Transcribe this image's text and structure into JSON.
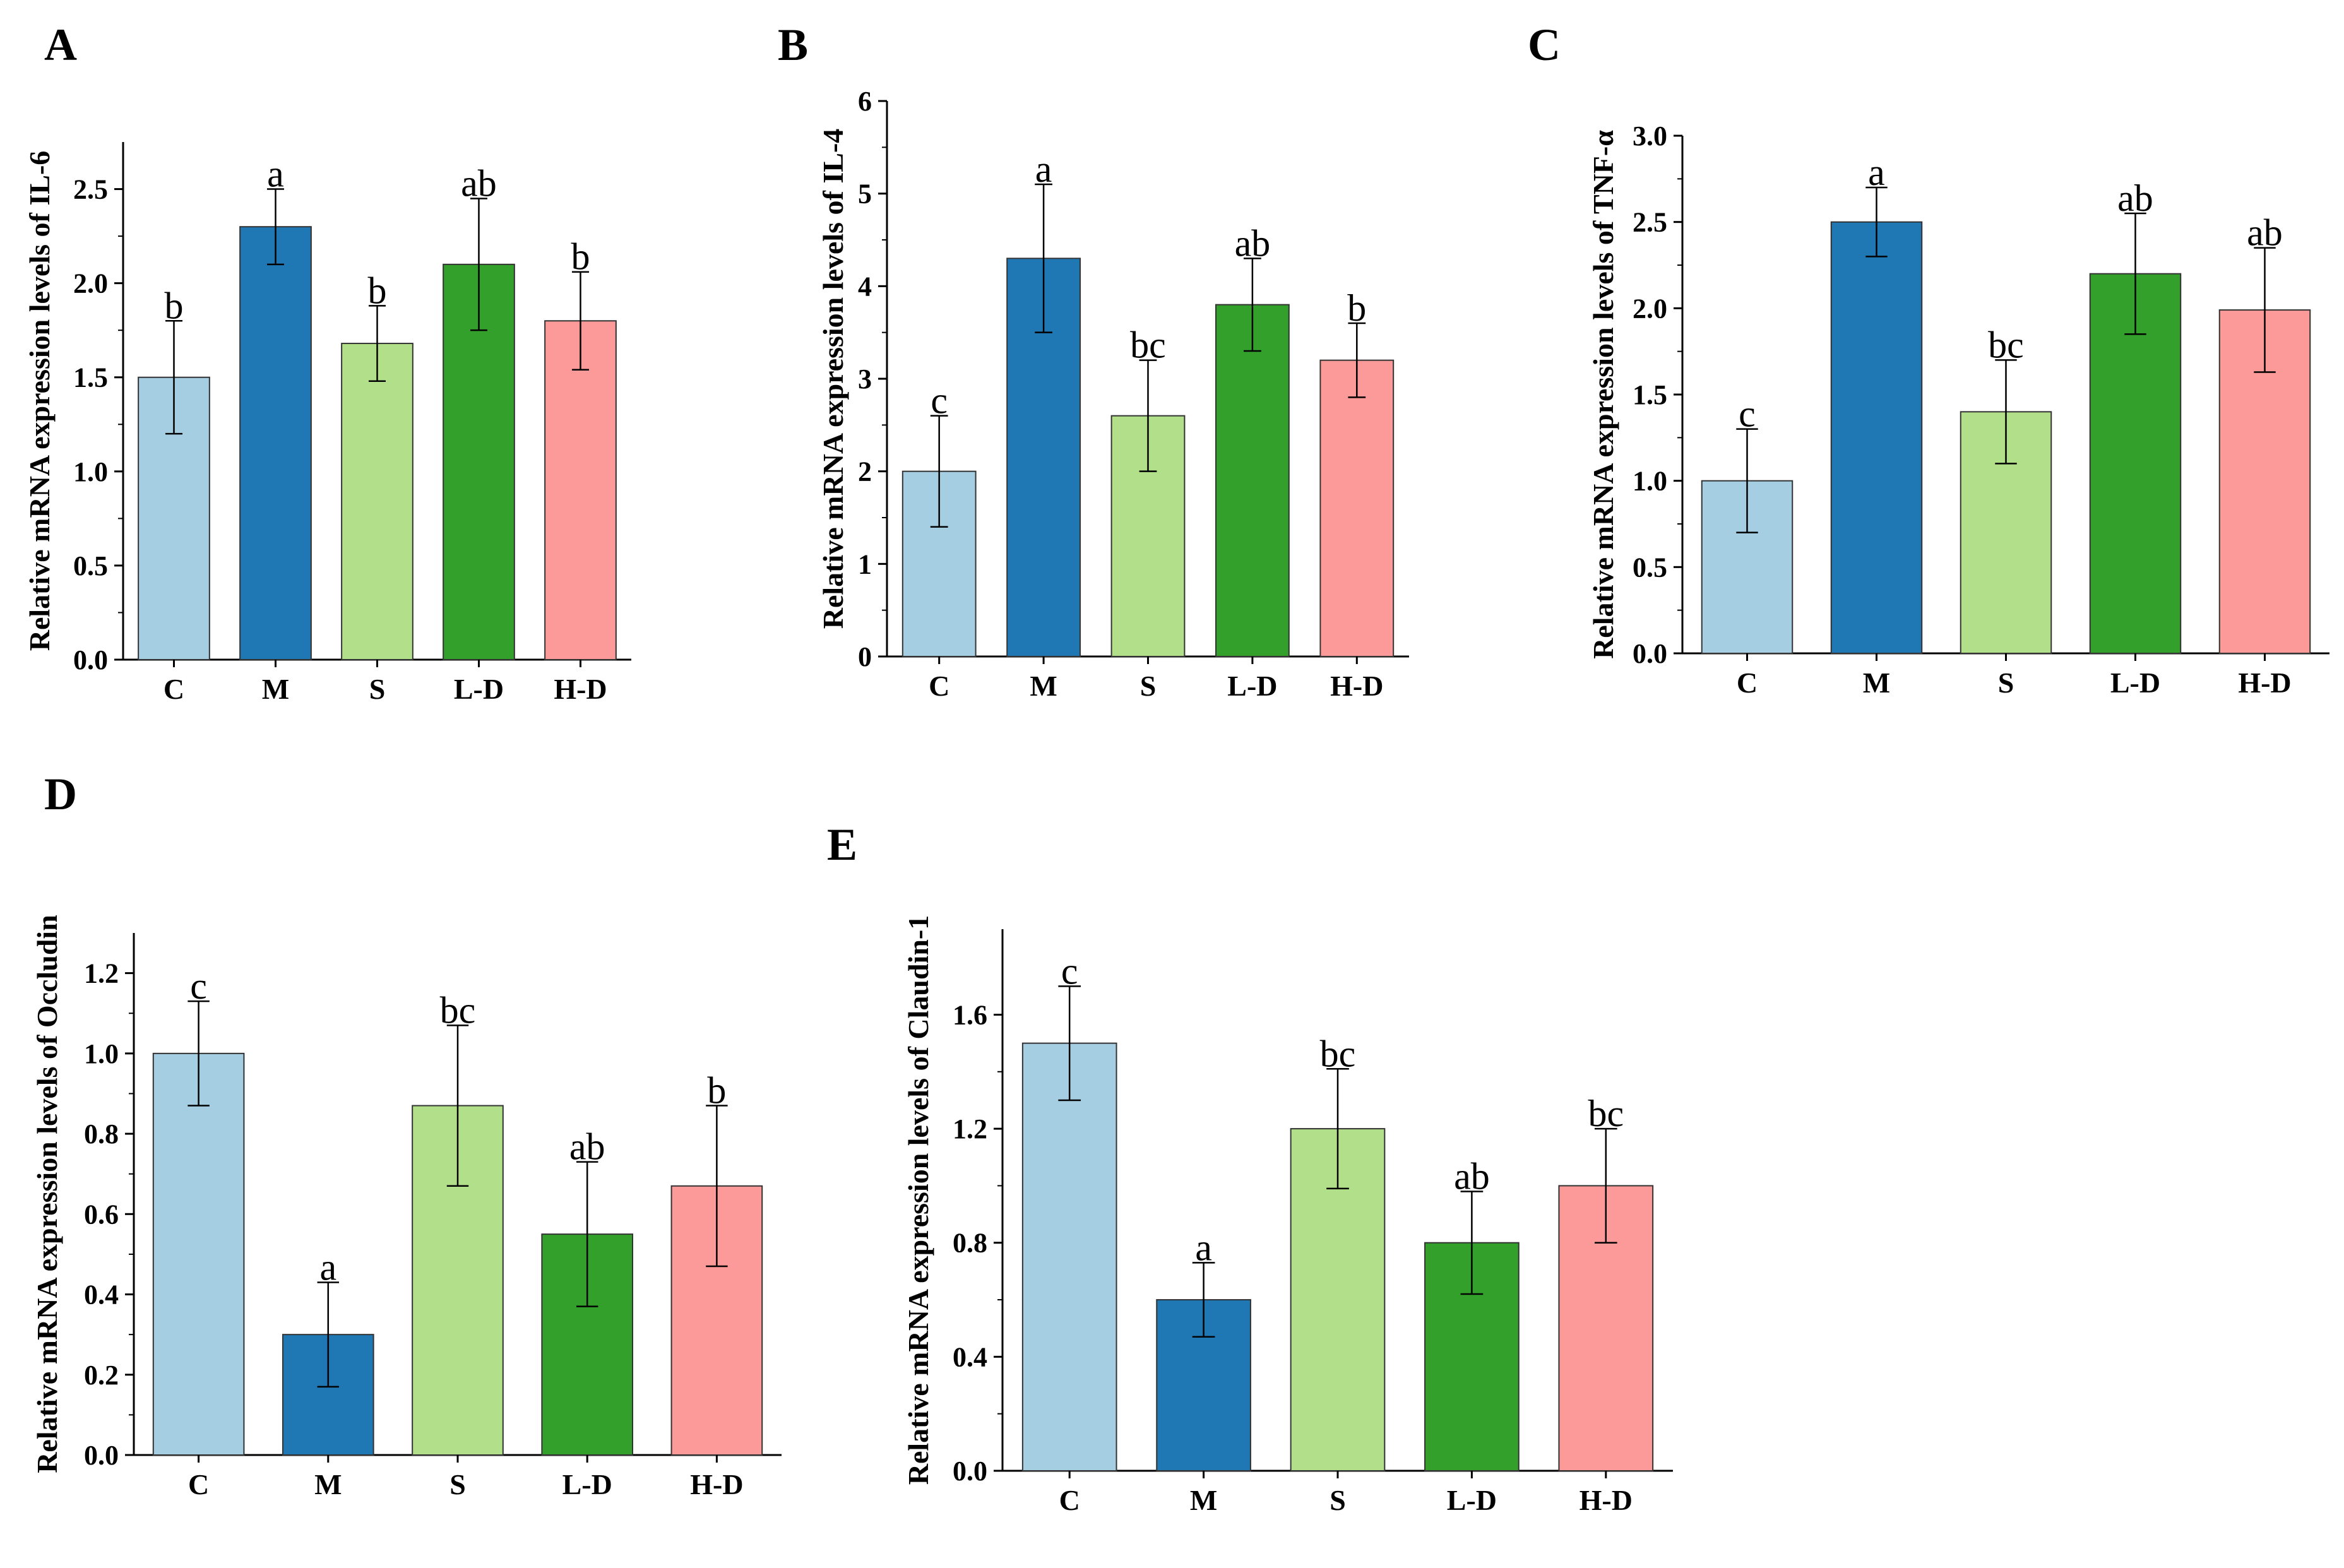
{
  "colors": {
    "C": "#a6cee3",
    "M": "#1f78b4",
    "S": "#b2df8a",
    "L-D": "#33a02c",
    "H-D": "#fb9a99",
    "axis": "#000000"
  },
  "chart_data": [
    {
      "panel": "A",
      "type": "bar",
      "ylabel": "Relative mRNA expression levels of IL-6",
      "categories": [
        "C",
        "M",
        "S",
        "L-D",
        "H-D"
      ],
      "values": [
        1.5,
        2.3,
        1.68,
        2.1,
        1.8
      ],
      "errors": [
        0.3,
        0.2,
        0.2,
        0.35,
        0.26
      ],
      "significance": [
        "b",
        "a",
        "b",
        "ab",
        "b"
      ],
      "ylim": [
        0,
        2.75
      ],
      "yticks": [
        0.0,
        0.5,
        1.0,
        1.5,
        2.0,
        2.5
      ],
      "ytick_labels": [
        "0.0",
        "0.5",
        "1.0",
        "1.5",
        "2.0",
        "2.5"
      ]
    },
    {
      "panel": "B",
      "type": "bar",
      "ylabel": "Relative mRNA expression levels of IL-4",
      "categories": [
        "C",
        "M",
        "S",
        "L-D",
        "H-D"
      ],
      "values": [
        2.0,
        4.3,
        2.6,
        3.8,
        3.2
      ],
      "errors": [
        0.6,
        0.8,
        0.6,
        0.5,
        0.4
      ],
      "significance": [
        "c",
        "a",
        "bc",
        "ab",
        "b"
      ],
      "ylim": [
        0,
        6
      ],
      "yticks": [
        0,
        1,
        2,
        3,
        4,
        5,
        6
      ],
      "ytick_labels": [
        "0",
        "1",
        "2",
        "3",
        "4",
        "5",
        "6"
      ]
    },
    {
      "panel": "C",
      "type": "bar",
      "ylabel": "Relative mRNA expression levels of TNF-α",
      "categories": [
        "C",
        "M",
        "S",
        "L-D",
        "H-D"
      ],
      "values": [
        1.0,
        2.5,
        1.4,
        2.2,
        1.99
      ],
      "errors": [
        0.3,
        0.2,
        0.3,
        0.35,
        0.36
      ],
      "significance": [
        "c",
        "a",
        "bc",
        "ab",
        "ab"
      ],
      "ylim": [
        0,
        3.0
      ],
      "yticks": [
        0.0,
        0.5,
        1.0,
        1.5,
        2.0,
        2.5,
        3.0
      ],
      "ytick_labels": [
        "0.0",
        "0.5",
        "1.0",
        "1.5",
        "2.0",
        "2.5",
        "3.0"
      ]
    },
    {
      "panel": "D",
      "type": "bar",
      "ylabel": "Relative mRNA expression levels of Occludin",
      "categories": [
        "C",
        "M",
        "S",
        "L-D",
        "H-D"
      ],
      "values": [
        1.0,
        0.3,
        0.87,
        0.55,
        0.67
      ],
      "errors": [
        0.13,
        0.13,
        0.2,
        0.18,
        0.2
      ],
      "significance": [
        "c",
        "a",
        "bc",
        "ab",
        "b"
      ],
      "ylim": [
        0,
        1.3
      ],
      "yticks": [
        0.0,
        0.2,
        0.4,
        0.6,
        0.8,
        1.0,
        1.2
      ],
      "ytick_labels": [
        "0.0",
        "0.2",
        "0.4",
        "0.6",
        "0.8",
        "1.0",
        "1.2"
      ]
    },
    {
      "panel": "E",
      "type": "bar",
      "ylabel": "Relative mRNA expression levels of Claudin-1",
      "categories": [
        "C",
        "M",
        "S",
        "L-D",
        "H-D"
      ],
      "values": [
        1.5,
        0.6,
        1.2,
        0.8,
        1.0
      ],
      "errors": [
        0.2,
        0.13,
        0.21,
        0.18,
        0.2
      ],
      "significance": [
        "c",
        "a",
        "bc",
        "ab",
        "bc"
      ],
      "ylim": [
        0,
        1.9
      ],
      "yticks": [
        0.0,
        0.4,
        0.8,
        1.2,
        1.6
      ],
      "ytick_labels": [
        "0.0",
        "0.4",
        "0.8",
        "1.2",
        "1.6"
      ]
    }
  ]
}
